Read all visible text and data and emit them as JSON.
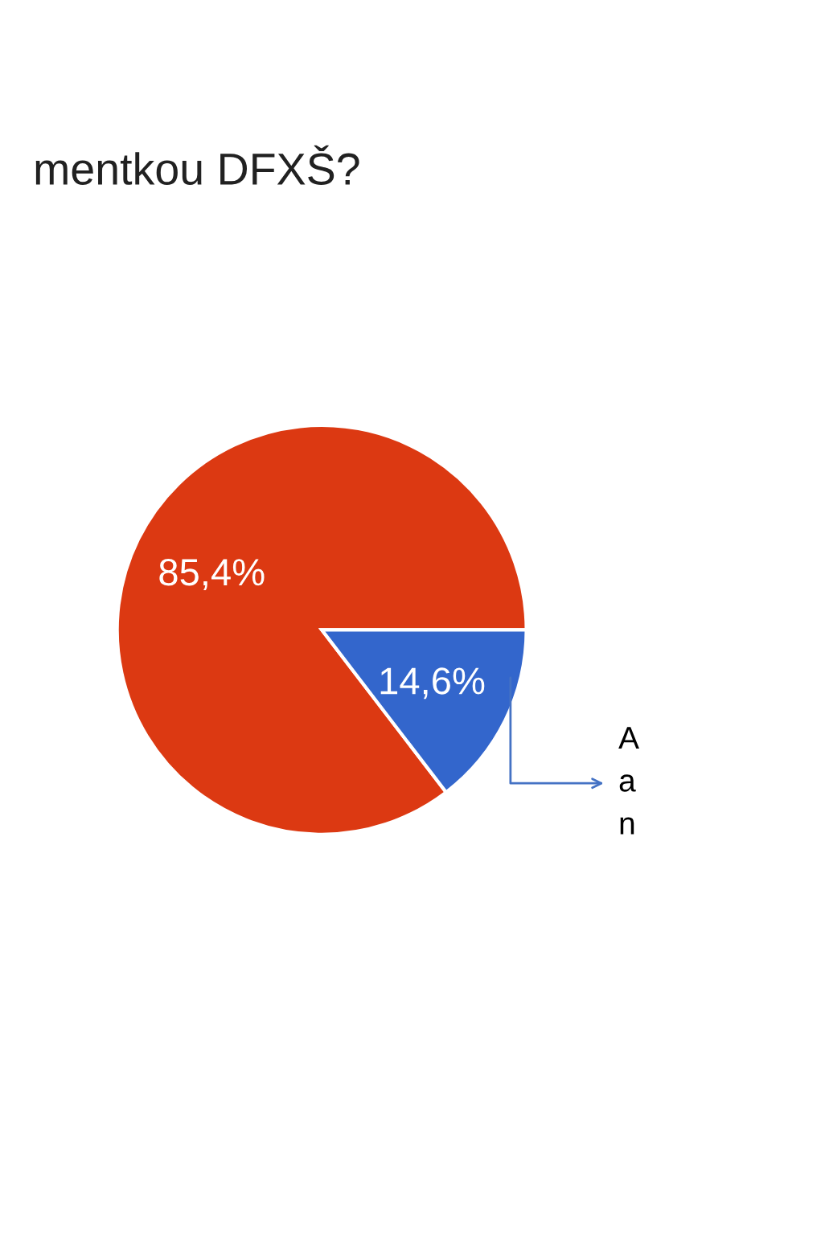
{
  "chart_data": {
    "type": "pie",
    "title": "mentkou DFXŠ?",
    "categories": [
      null,
      null
    ],
    "values": [
      85.4,
      14.6
    ],
    "colors": [
      "#dc3912",
      "#3366cc"
    ],
    "value_labels": [
      "85,4%",
      "14,6%"
    ],
    "annotations": [
      "A\na\nn"
    ]
  }
}
